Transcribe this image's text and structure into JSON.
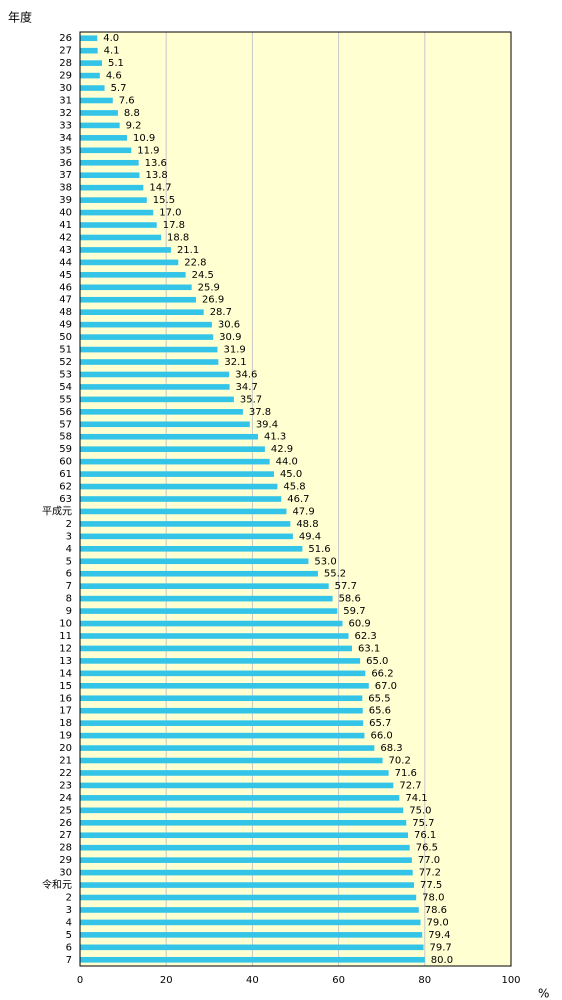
{
  "chart_data": {
    "type": "hbar",
    "y_label": "年度",
    "x_label": "%",
    "categories": [
      "26",
      "27",
      "28",
      "29",
      "30",
      "31",
      "32",
      "33",
      "34",
      "35",
      "36",
      "37",
      "38",
      "39",
      "40",
      "41",
      "42",
      "43",
      "44",
      "45",
      "46",
      "47",
      "48",
      "49",
      "50",
      "51",
      "52",
      "53",
      "54",
      "55",
      "56",
      "57",
      "58",
      "59",
      "60",
      "61",
      "62",
      "63",
      "平成元",
      "2",
      "3",
      "4",
      "5",
      "6",
      "7",
      "8",
      "9",
      "10",
      "11",
      "12",
      "13",
      "14",
      "15",
      "16",
      "17",
      "18",
      "19",
      "20",
      "21",
      "22",
      "23",
      "24",
      "25",
      "26",
      "27",
      "28",
      "29",
      "30",
      "令和元",
      "2",
      "3",
      "4",
      "5",
      "6",
      "7"
    ],
    "values": [
      4.0,
      4.1,
      5.1,
      4.6,
      5.7,
      7.6,
      8.8,
      9.2,
      10.9,
      11.9,
      13.6,
      13.8,
      14.7,
      15.5,
      17.0,
      17.8,
      18.8,
      21.1,
      22.8,
      24.5,
      25.9,
      26.9,
      28.7,
      30.6,
      30.9,
      31.9,
      32.1,
      34.6,
      34.7,
      35.7,
      37.8,
      39.4,
      41.3,
      42.9,
      44.0,
      45.0,
      45.8,
      46.7,
      47.9,
      48.8,
      49.4,
      51.6,
      53.0,
      55.2,
      57.7,
      58.6,
      59.7,
      60.9,
      62.3,
      63.1,
      65.0,
      66.2,
      67.0,
      65.5,
      65.6,
      65.7,
      66.0,
      68.3,
      70.2,
      71.6,
      72.7,
      74.1,
      75.0,
      75.7,
      76.1,
      76.5,
      77.0,
      77.2,
      77.5,
      78.0,
      78.6,
      79.0,
      79.4,
      79.7,
      80.0
    ],
    "value_labels": [
      "4.0",
      "4.1",
      "5.1",
      "4.6",
      "5.7",
      "7.6",
      "8.8",
      "9.2",
      "10.9",
      "11.9",
      "13.6",
      "13.8",
      "14.7",
      "15.5",
      "17.0",
      "17.8",
      "18.8",
      "21.1",
      "22.8",
      "24.5",
      "25.9",
      "26.9",
      "28.7",
      "30.6",
      "30.9",
      "31.9",
      "32.1",
      "34.6",
      "34.7",
      "35.7",
      "37.8",
      "39.4",
      "41.3",
      "42.9",
      "44.0",
      "45.0",
      "45.8",
      "46.7",
      "47.9",
      "48.8",
      "49.4",
      "51.6",
      "53.0",
      "55.2",
      "57.7",
      "58.6",
      "59.7",
      "60.9",
      "62.3",
      "63.1",
      "65.0",
      "66.2",
      "67.0",
      "65.5",
      "65.6",
      "65.7",
      "66.0",
      "68.3",
      "70.2",
      "71.6",
      "72.7",
      "74.1",
      "75.0",
      "75.7",
      "76.1",
      "76.5",
      "77.0",
      "77.2",
      "77.5",
      "78.0",
      "78.6",
      "79.0",
      "79.4",
      "79.7",
      "80.0"
    ],
    "color": "#33c4e8",
    "background": "#ffffd2",
    "xlim": [
      0,
      100
    ],
    "xticks": [
      0,
      20,
      40,
      60,
      80,
      100
    ],
    "grid": true
  }
}
